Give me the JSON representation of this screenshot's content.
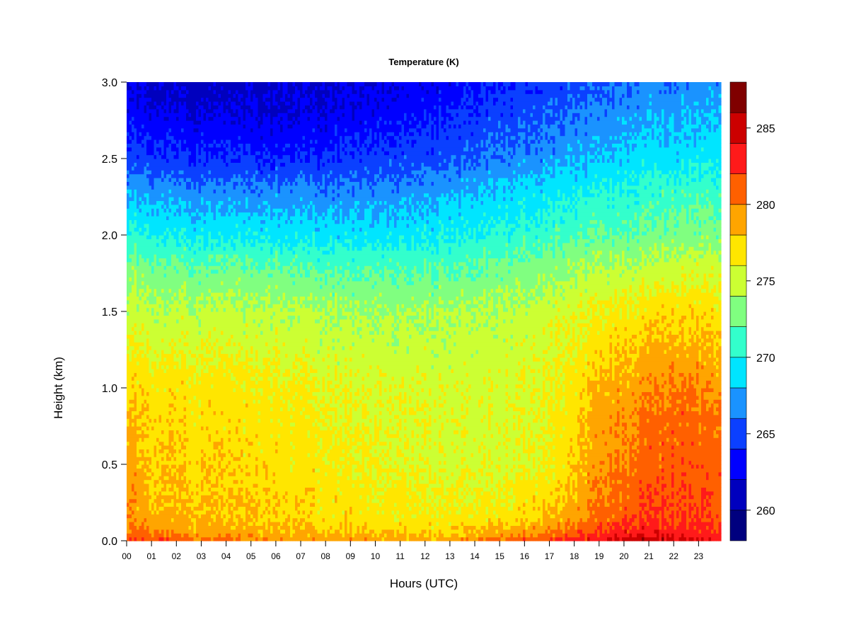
{
  "chart_data": {
    "type": "heatmap",
    "title": "Temperature (K)",
    "xlabel": "Hours (UTC)",
    "ylabel": "Height (km)",
    "x_ticks": [
      "00",
      "01",
      "02",
      "03",
      "04",
      "05",
      "06",
      "07",
      "08",
      "09",
      "10",
      "11",
      "12",
      "13",
      "14",
      "15",
      "16",
      "17",
      "18",
      "19",
      "20",
      "21",
      "22",
      "23"
    ],
    "xlim": [
      0,
      23.9
    ],
    "y_ticks": [
      "0.0",
      "0.5",
      "1.0",
      "1.5",
      "2.0",
      "2.5",
      "3.0"
    ],
    "ylim": [
      0,
      3.0
    ],
    "grid": false,
    "colorbar": {
      "levels": [
        258,
        260,
        262,
        264,
        266,
        268,
        270,
        272,
        274,
        276,
        278,
        280,
        282,
        284,
        286,
        288
      ],
      "tick_labels": [
        "260",
        "265",
        "270",
        "275",
        "280",
        "285"
      ],
      "tick_values": [
        260,
        265,
        270,
        275,
        280,
        285
      ],
      "colors": [
        "#00007F",
        "#0000BE",
        "#0000FF",
        "#0B40FF",
        "#1A93FF",
        "#00E5FF",
        "#33FFCC",
        "#80FF80",
        "#CCFF33",
        "#FFE600",
        "#FFA500",
        "#FF6000",
        "#FF1A1A",
        "#CC0000",
        "#800000"
      ]
    },
    "temperature_profiles": {
      "heights_km": [
        0.0,
        0.05,
        0.15,
        0.5,
        0.8,
        1.0,
        1.5,
        1.8,
        2.0,
        2.3,
        2.5,
        2.8,
        3.0
      ],
      "hours": [
        0,
        1,
        3,
        6,
        9,
        12,
        15,
        17,
        18,
        19,
        20,
        21,
        22,
        23.9
      ],
      "values": [
        [
          283.0,
          281.0,
          280.0,
          279.0,
          278.5,
          277.5,
          275.0,
          273.0,
          270.5,
          267.5,
          265.0,
          263.0,
          262.0
        ],
        [
          282.0,
          280.0,
          278.5,
          278.0,
          277.5,
          277.0,
          274.5,
          272.5,
          270.0,
          267.0,
          264.5,
          262.5,
          261.5
        ],
        [
          281.0,
          279.0,
          278.0,
          277.5,
          277.0,
          276.8,
          274.5,
          272.0,
          269.5,
          266.5,
          264.0,
          262.0,
          261.0
        ],
        [
          280.5,
          278.5,
          277.8,
          277.2,
          276.8,
          276.5,
          274.5,
          272.0,
          269.5,
          266.5,
          264.0,
          262.0,
          261.5
        ],
        [
          279.5,
          278.0,
          277.0,
          276.5,
          276.0,
          275.8,
          274.0,
          271.5,
          269.0,
          266.5,
          264.5,
          262.5,
          262.0
        ],
        [
          278.5,
          277.5,
          276.5,
          275.5,
          275.5,
          275.5,
          274.0,
          271.5,
          269.5,
          267.0,
          265.0,
          263.5,
          262.5
        ],
        [
          281.0,
          279.0,
          277.0,
          275.5,
          275.5,
          275.5,
          274.5,
          272.5,
          270.5,
          268.5,
          266.5,
          265.0,
          264.0
        ],
        [
          282.0,
          280.0,
          278.0,
          276.0,
          276.0,
          276.0,
          275.0,
          273.0,
          271.0,
          269.0,
          267.0,
          265.5,
          264.5
        ],
        [
          283.0,
          281.0,
          279.0,
          277.5,
          277.0,
          276.5,
          275.5,
          273.5,
          271.5,
          269.5,
          267.5,
          266.0,
          265.0
        ],
        [
          284.0,
          282.0,
          280.5,
          279.5,
          279.0,
          278.5,
          276.0,
          274.0,
          272.0,
          270.0,
          268.0,
          266.5,
          265.5
        ],
        [
          285.0,
          283.0,
          281.5,
          280.0,
          279.5,
          279.0,
          276.5,
          274.0,
          272.0,
          270.0,
          268.5,
          267.0,
          266.0
        ],
        [
          285.5,
          283.5,
          282.0,
          281.0,
          280.5,
          279.5,
          277.0,
          274.5,
          272.5,
          270.5,
          269.0,
          267.5,
          266.5
        ],
        [
          285.0,
          283.0,
          282.0,
          281.2,
          281.0,
          280.0,
          277.5,
          275.0,
          273.0,
          271.0,
          269.0,
          267.5,
          266.5
        ],
        [
          284.0,
          282.5,
          281.5,
          281.0,
          280.5,
          279.5,
          277.0,
          275.0,
          273.0,
          271.0,
          269.5,
          268.0,
          267.0
        ]
      ]
    }
  }
}
